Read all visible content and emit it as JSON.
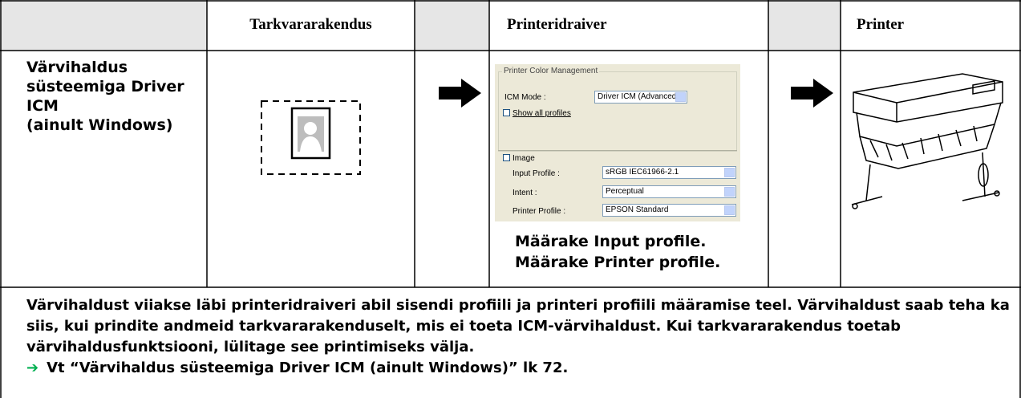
{
  "table": {
    "header": [
      "Tarkvararakendus",
      "Printeridraiver",
      "Printer"
    ],
    "row_label": [
      "Värvihaldus",
      "süsteemiga Driver",
      "ICM",
      "(ainult Windows)"
    ],
    "dialog": {
      "group_title": "Printer Color Management",
      "icm_mode_label": "ICM Mode :",
      "icm_mode_value": "Driver ICM (Advanced)",
      "show_all_profiles": "Show all profiles",
      "image": "Image",
      "input_profile_label": "Input Profile :",
      "input_profile_value": "sRGB IEC61966-2.1",
      "intent_label": "Intent :",
      "intent_value": "Perceptual",
      "printer_profile_label": "Printer Profile :",
      "printer_profile_value": "EPSON Standard"
    },
    "caption": [
      "Määrake Input profile.",
      "Määrake Printer profile."
    ],
    "description": "Värvihaldust viiakse läbi printeridraiveri abil sisendi profiili ja printeri profiili määramise teel. Värvihaldust saab teha ka siis, kui prindite andmeid tarkvararakenduselt, mis ei toeta ICM-värvihaldust. Kui tarkvararakendus toetab värvihaldusfunktsiooni, lülitage see printimiseks välja.",
    "link": "Vt “Värvihaldus süsteemiga Driver ICM (ainult Windows)” lk 72."
  }
}
